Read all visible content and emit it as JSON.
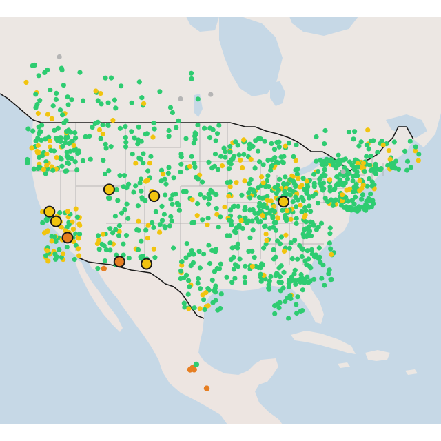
{
  "colors": {
    "water": "#c6d8e6",
    "land": "#ece7e3",
    "us_land": "#ebe6e3",
    "mexico_land": "#ede5e1",
    "state_border": "#a8a8a8",
    "country_border": "#1a1a1a",
    "good": "#2ecc71",
    "moderate": "#f1c40f",
    "usg": "#e67e22",
    "no_data": "#b5b5b5",
    "marker_outline": "#1a1a1a"
  },
  "legend_semantics": [
    "good",
    "moderate",
    "unhealthy-for-sensitive-groups",
    "no-data"
  ],
  "stations": {
    "large_markers": [
      {
        "lon": -111.9,
        "lat": 40.7,
        "cat": "moderate"
      },
      {
        "lon": -104.9,
        "lat": 39.7,
        "cat": "moderate"
      },
      {
        "lon": -84.5,
        "lat": 39.1,
        "cat": "moderate"
      },
      {
        "lon": -121.5,
        "lat": 38.6,
        "cat": "moderate"
      },
      {
        "lon": -120.6,
        "lat": 37.4,
        "cat": "moderate"
      },
      {
        "lon": -119.0,
        "lat": 35.4,
        "cat": "usg"
      },
      {
        "lon": -110.9,
        "lat": 32.2,
        "cat": "usg"
      },
      {
        "lon": -106.5,
        "lat": 31.8,
        "cat": "moderate"
      }
    ],
    "mexico_points": [
      {
        "lon": -99.2,
        "lat": 19.5,
        "cat": "usg"
      },
      {
        "lon": -98.9,
        "lat": 19.3,
        "cat": "usg"
      },
      {
        "lon": -99.6,
        "lat": 19.3,
        "cat": "usg"
      },
      {
        "lon": -96.7,
        "lat": 17.1,
        "cat": "usg"
      },
      {
        "lon": -98.5,
        "lat": 19.9,
        "cat": "good"
      },
      {
        "lon": -113.5,
        "lat": 31.5,
        "cat": "usg"
      }
    ],
    "clusters": [
      {
        "name": "pacific-northwest",
        "lon": [
          -124.2,
          -116.5
        ],
        "lat": [
          43.0,
          48.8
        ],
        "n": 90,
        "good_ratio": 0.78
      },
      {
        "name": "california",
        "lon": [
          -122.8,
          -116.8
        ],
        "lat": [
          32.7,
          38.9
        ],
        "n": 70,
        "good_ratio": 0.45
      },
      {
        "name": "idaho-montana",
        "lon": [
          -116.5,
          -104.5
        ],
        "lat": [
          43.5,
          48.8
        ],
        "n": 45,
        "good_ratio": 0.86
      },
      {
        "name": "mountain-west",
        "lon": [
          -113.0,
          -102.5
        ],
        "lat": [
          35.5,
          43.5
        ],
        "n": 55,
        "good_ratio": 0.85
      },
      {
        "name": "southwest",
        "lon": [
          -114.5,
          -103.5
        ],
        "lat": [
          31.5,
          36.5
        ],
        "n": 35,
        "good_ratio": 0.8
      },
      {
        "name": "great-plains",
        "lon": [
          -103.0,
          -94.5
        ],
        "lat": [
          33.0,
          48.5
        ],
        "n": 80,
        "good_ratio": 0.92
      },
      {
        "name": "texas-gulf",
        "lon": [
          -101.0,
          -94.0
        ],
        "lat": [
          26.2,
          33.5
        ],
        "n": 55,
        "good_ratio": 0.82
      },
      {
        "name": "midwest",
        "lon": [
          -94.5,
          -82.5
        ],
        "lat": [
          37.0,
          46.5
        ],
        "n": 140,
        "good_ratio": 0.8
      },
      {
        "name": "ohio-valley",
        "lon": [
          -88.5,
          -80.0
        ],
        "lat": [
          37.0,
          42.0
        ],
        "n": 90,
        "good_ratio": 0.72
      },
      {
        "name": "southeast",
        "lon": [
          -93.5,
          -76.0
        ],
        "lat": [
          29.5,
          37.0
        ],
        "n": 150,
        "good_ratio": 0.97
      },
      {
        "name": "florida",
        "lon": [
          -87.0,
          -80.2
        ],
        "lat": [
          25.5,
          30.8
        ],
        "n": 40,
        "good_ratio": 0.97
      },
      {
        "name": "northeast",
        "lon": [
          -80.0,
          -70.2
        ],
        "lat": [
          38.5,
          44.5
        ],
        "n": 170,
        "good_ratio": 0.9
      },
      {
        "name": "new-england",
        "lon": [
          -73.5,
          -67.0
        ],
        "lat": [
          43.0,
          47.0
        ],
        "n": 25,
        "good_ratio": 0.84
      },
      {
        "name": "canada-west",
        "lon": [
          -123.5,
          -114.0
        ],
        "lat": [
          49.0,
          56.0
        ],
        "n": 30,
        "good_ratio": 0.85
      },
      {
        "name": "canada-central",
        "lon": [
          -113.5,
          -97.0
        ],
        "lat": [
          49.0,
          54.0
        ],
        "n": 22,
        "good_ratio": 0.9
      },
      {
        "name": "canada-east",
        "lon": [
          -80.0,
          -63.5
        ],
        "lat": [
          43.5,
          48.5
        ],
        "n": 30,
        "good_ratio": 0.85
      }
    ],
    "canada_gray": [
      {
        "lon": -134.0,
        "lat": 58.5
      },
      {
        "lon": -130.5,
        "lat": 57.5
      },
      {
        "lon": -118.0,
        "lat": 56.5
      },
      {
        "lon": -100.5,
        "lat": 51.0
      },
      {
        "lon": -96.0,
        "lat": 51.5
      },
      {
        "lon": -75.5,
        "lat": 43.0
      }
    ]
  }
}
